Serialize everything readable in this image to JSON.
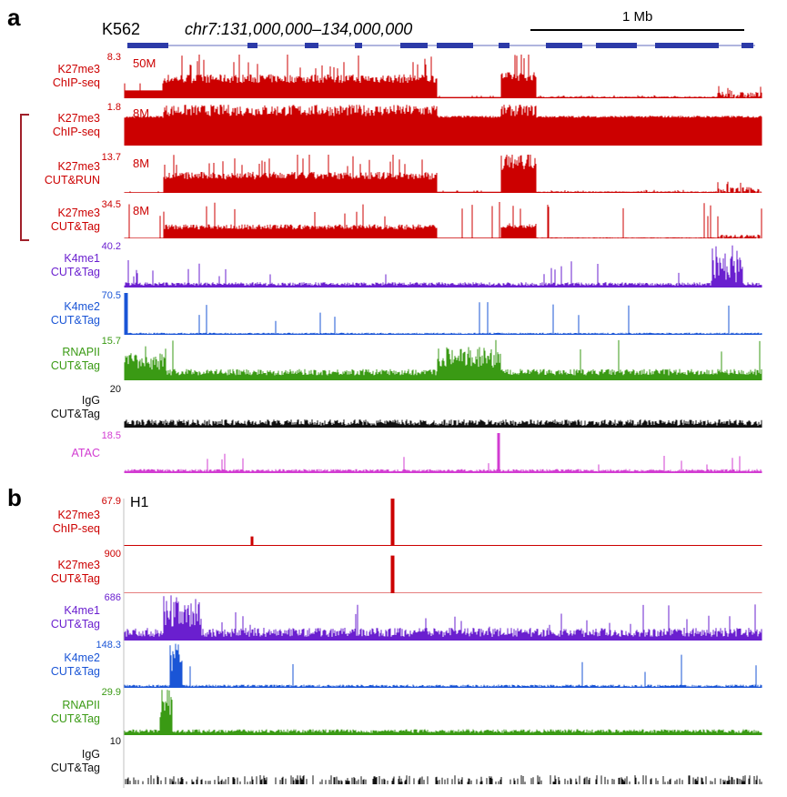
{
  "figure": {
    "panel_a": {
      "letter": "a",
      "cell_line": "K562",
      "region": "chr7:131,000,000–134,000,000",
      "scale_label": "1 Mb",
      "tracks": [
        {
          "id": "k27me3-chip-top",
          "mark": "K27me3",
          "assay": "ChIP-seq",
          "max": "8.3",
          "depth": "50M",
          "color": "#cc0000"
        },
        {
          "id": "k27me3-chip",
          "mark": "K27me3",
          "assay": "ChIP-seq",
          "max": "1.8",
          "depth": "8M",
          "color": "#cc0000"
        },
        {
          "id": "k27me3-cutrun",
          "mark": "K27me3",
          "assay": "CUT&RUN",
          "max": "13.7",
          "depth": "8M",
          "color": "#cc0000"
        },
        {
          "id": "k27me3-cuttag",
          "mark": "K27me3",
          "assay": "CUT&Tag",
          "max": "34.5",
          "depth": "8M",
          "color": "#cc0000"
        },
        {
          "id": "k4me1-cuttag",
          "mark": "K4me1",
          "assay": "CUT&Tag",
          "max": "40.2",
          "depth": "",
          "color": "#6a1fcf"
        },
        {
          "id": "k4me2-cuttag",
          "mark": "K4me2",
          "assay": "CUT&Tag",
          "max": "70.5",
          "depth": "",
          "color": "#1a55d6"
        },
        {
          "id": "rnapii-cuttag",
          "mark": "RNAPII",
          "assay": "CUT&Tag",
          "max": "15.7",
          "depth": "",
          "color": "#3a9a14"
        },
        {
          "id": "igg-cuttag",
          "mark": "IgG",
          "assay": "CUT&Tag",
          "max": "20",
          "depth": "",
          "color": "#111111"
        },
        {
          "id": "atac",
          "mark": "ATAC",
          "assay": "",
          "max": "18.5",
          "depth": "",
          "color": "#d23cd2"
        }
      ]
    },
    "panel_b": {
      "letter": "b",
      "cell_line": "H1",
      "tracks": [
        {
          "id": "h1-k27me3-chip",
          "mark": "K27me3",
          "assay": "ChIP-seq",
          "max": "67.9",
          "color": "#cc0000"
        },
        {
          "id": "h1-k27me3-cuttag",
          "mark": "K27me3",
          "assay": "CUT&Tag",
          "max": "900",
          "color": "#cc0000"
        },
        {
          "id": "h1-k4me1-cuttag",
          "mark": "K4me1",
          "assay": "CUT&Tag",
          "max": "686",
          "color": "#6a1fcf"
        },
        {
          "id": "h1-k4me2-cuttag",
          "mark": "K4me2",
          "assay": "CUT&Tag",
          "max": "148.3",
          "color": "#1a55d6"
        },
        {
          "id": "h1-rnapii-cuttag",
          "mark": "RNAPII",
          "assay": "CUT&Tag",
          "max": "29.9",
          "color": "#3a9a14"
        },
        {
          "id": "h1-igg-cuttag",
          "mark": "IgG",
          "assay": "CUT&Tag",
          "max": "10",
          "color": "#111111"
        }
      ]
    },
    "gene_color": "#2c3aa8",
    "bracket_color": "#a0202a"
  }
}
